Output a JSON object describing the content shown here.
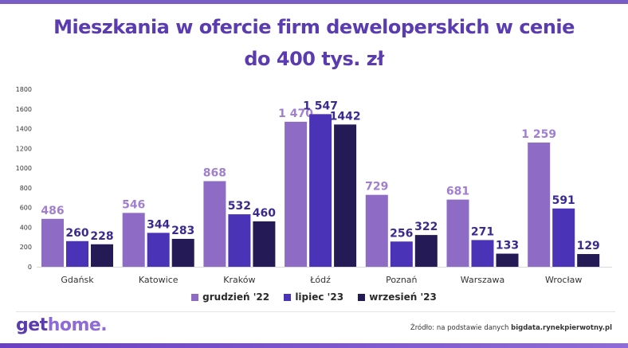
{
  "title_line1": "Mieszkania w ofercie firm deweloperskich w cenie",
  "title_line2": "do 400 tys. zł",
  "logo_part1": "get",
  "logo_part2": "home.",
  "source_prefix": "Źródło: na podstawie danych ",
  "source_site": "bigdata.rynekpierwotny.pl",
  "colors": {
    "title": "#5a3bb0",
    "series": [
      "#8e6bc4",
      "#4b33b8",
      "#241a55"
    ],
    "label_light": "#a07fd0",
    "label_dark": "#3a2a90"
  },
  "chart_data": {
    "type": "bar",
    "title": "Mieszkania w ofercie firm deweloperskich w cenie do 400 tys. zł",
    "categories": [
      "Gdańsk",
      "Katowice",
      "Kraków",
      "Łódź",
      "Poznań",
      "Warszawa",
      "Wrocław"
    ],
    "series": [
      {
        "name": "grudzień '22",
        "values": [
          486,
          546,
          868,
          1470,
          729,
          681,
          1259
        ],
        "labels": [
          "486",
          "546",
          "868",
          "1 470",
          "729",
          "681",
          "1 259"
        ]
      },
      {
        "name": "lipiec '23",
        "values": [
          260,
          344,
          532,
          1547,
          256,
          271,
          591
        ],
        "labels": [
          "260",
          "344",
          "532",
          "1 547",
          "256",
          "271",
          "591"
        ]
      },
      {
        "name": "wrzesień '23",
        "values": [
          228,
          283,
          460,
          1442,
          322,
          133,
          129
        ],
        "labels": [
          "228",
          "283",
          "460",
          "1442",
          "322",
          "133",
          "129"
        ]
      }
    ],
    "yticks": [
      "0",
      "200",
      "400",
      "600",
      "800",
      "1000",
      "1200",
      "1400",
      "1600",
      "1800"
    ],
    "ylim": [
      0,
      1800
    ],
    "grid": false,
    "legend": "bottom-center"
  }
}
